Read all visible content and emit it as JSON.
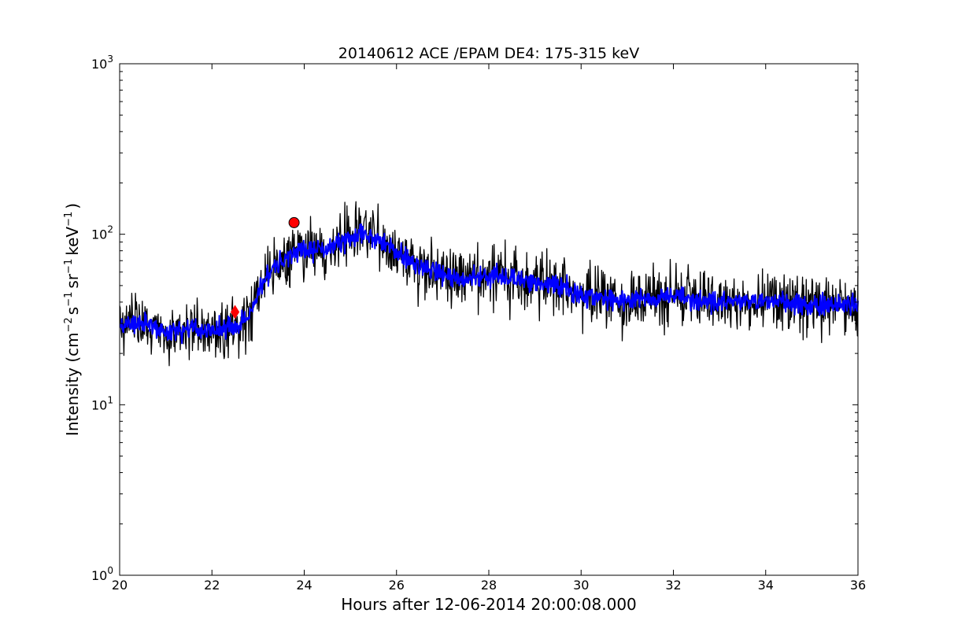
{
  "chart_data": {
    "type": "line",
    "title": "20140612 ACE /EPAM DE4: 175-315 keV",
    "xlabel": "Hours after 12-06-2014 20:00:08.000",
    "ylabel": {
      "base": "Intensity (cm",
      "exp1": "−2",
      "mid1": "s",
      "exp2": "−1",
      "mid2": "sr",
      "exp3": "−1",
      "mid3": "keV",
      "exp4": "−1",
      "end": ")"
    },
    "xlim": [
      20,
      36
    ],
    "ylim": [
      1,
      1000
    ],
    "yscale": "log",
    "grid": false,
    "x_ticks": [
      "20",
      "22",
      "24",
      "26",
      "28",
      "30",
      "32",
      "34",
      "36"
    ],
    "y_ticks": [
      {
        "base": "10",
        "exp": "0"
      },
      {
        "base": "10",
        "exp": "1"
      },
      {
        "base": "10",
        "exp": "2"
      },
      {
        "base": "10",
        "exp": "3"
      }
    ],
    "colors": {
      "raw": "#000000",
      "smoothed": "#0000ff",
      "markers": "#ff0000"
    },
    "series": [
      {
        "style": "black-noisy",
        "x": [
          20.0,
          20.5,
          21.0,
          21.5,
          22.0,
          22.5,
          22.8,
          23.0,
          23.3,
          23.6,
          23.8,
          24.0,
          24.5,
          25.0,
          25.3,
          25.7,
          26.0,
          26.5,
          27.0,
          27.5,
          28.0,
          28.5,
          29.0,
          29.5,
          30.0,
          30.5,
          31.0,
          32.0,
          33.0,
          34.0,
          35.0,
          36.0
        ],
        "y": [
          29,
          30,
          27,
          28,
          27,
          29,
          33,
          45,
          62,
          70,
          82,
          80,
          82,
          95,
          100,
          92,
          78,
          65,
          58,
          54,
          58,
          56,
          52,
          50,
          44,
          42,
          41,
          43,
          40,
          41,
          39,
          38
        ]
      },
      {
        "style": "blue-smoothed",
        "x": [
          20.0,
          20.5,
          21.0,
          21.5,
          22.0,
          22.5,
          22.8,
          23.0,
          23.3,
          23.6,
          23.8,
          24.0,
          24.5,
          25.0,
          25.3,
          25.7,
          26.0,
          26.5,
          27.0,
          27.5,
          28.0,
          28.5,
          29.0,
          29.5,
          30.0,
          30.5,
          31.0,
          32.0,
          33.0,
          34.0,
          35.0,
          36.0
        ],
        "y": [
          29,
          30,
          27,
          28,
          27,
          29,
          33,
          45,
          62,
          70,
          82,
          80,
          82,
          95,
          100,
          92,
          78,
          65,
          58,
          54,
          58,
          56,
          52,
          50,
          44,
          42,
          41,
          43,
          40,
          41,
          39,
          38
        ]
      }
    ],
    "markers": [
      {
        "shape": "diamond",
        "x": 22.5,
        "y": 35
      },
      {
        "shape": "circle",
        "x": 23.78,
        "y": 117
      }
    ]
  }
}
